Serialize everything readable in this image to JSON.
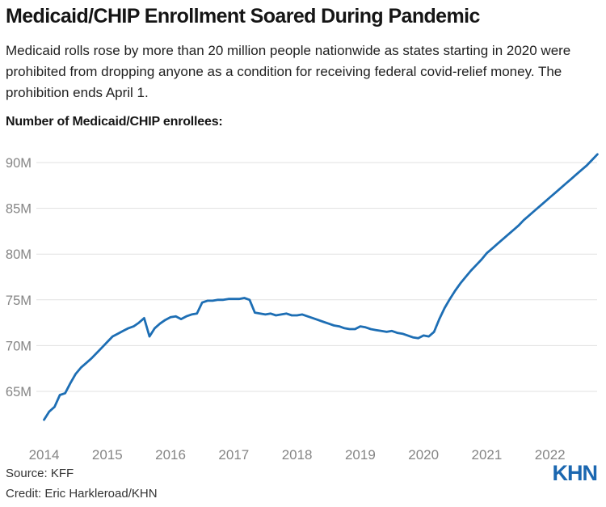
{
  "header": {
    "title": "Medicaid/CHIP Enrollment Soared During Pandemic",
    "subtitle": "Medicaid rolls rose by more than 20 million people nationwide as states starting in 2020 were prohibited from dropping anyone as a condition for receiving federal covid-relief money. The prohibition ends April 1.",
    "chart_label": "Number of Medicaid/CHIP enrollees:"
  },
  "footer": {
    "source": "Source: KFF",
    "credit": "Credit: Eric Harkleroad/KHN",
    "logo": "KHN"
  },
  "colors": {
    "line": "#1d6eb4",
    "grid": "#e1e1e1",
    "axis_text": "#858585",
    "logo_blue": "#1b67b0"
  },
  "chart_data": {
    "type": "line",
    "title": "Number of Medicaid/CHIP enrollees:",
    "x_unit": "month",
    "start": "2014-01",
    "end": "2022-10",
    "x_tick_labels": [
      "2014",
      "2015",
      "2016",
      "2017",
      "2018",
      "2019",
      "2020",
      "2021",
      "2022"
    ],
    "y_tick_labels": [
      "65M",
      "70M",
      "75M",
      "80M",
      "85M",
      "90M"
    ],
    "y_ticks_millions": [
      65,
      70,
      75,
      80,
      85,
      90
    ],
    "ylim": [
      61,
      92
    ],
    "grid": "horizontal",
    "legend": "none",
    "series": [
      {
        "name": "Medicaid/CHIP enrollees (millions)",
        "values": [
          61.9,
          62.8,
          63.3,
          64.6,
          64.8,
          65.9,
          66.9,
          67.6,
          68.1,
          68.6,
          69.2,
          69.8,
          70.4,
          71.0,
          71.3,
          71.6,
          71.9,
          72.1,
          72.5,
          73.0,
          71.0,
          71.9,
          72.4,
          72.8,
          73.1,
          73.2,
          72.9,
          73.2,
          73.4,
          73.5,
          74.7,
          74.9,
          74.9,
          75.0,
          75.0,
          75.1,
          75.1,
          75.1,
          75.2,
          75.0,
          73.6,
          73.5,
          73.4,
          73.5,
          73.3,
          73.4,
          73.5,
          73.3,
          73.3,
          73.4,
          73.2,
          73.0,
          72.8,
          72.6,
          72.4,
          72.2,
          72.1,
          71.9,
          71.8,
          71.8,
          72.1,
          72.0,
          71.8,
          71.7,
          71.6,
          71.5,
          71.6,
          71.4,
          71.3,
          71.1,
          70.9,
          70.8,
          71.1,
          71.0,
          71.5,
          72.9,
          74.1,
          75.1,
          76.0,
          76.8,
          77.5,
          78.2,
          78.8,
          79.4,
          80.1,
          80.6,
          81.1,
          81.6,
          82.1,
          82.6,
          83.1,
          83.7,
          84.2,
          84.7,
          85.2,
          85.7,
          86.2,
          86.7,
          87.2,
          87.7,
          88.2,
          88.7,
          89.2,
          89.7,
          90.3,
          90.9
        ]
      }
    ]
  }
}
